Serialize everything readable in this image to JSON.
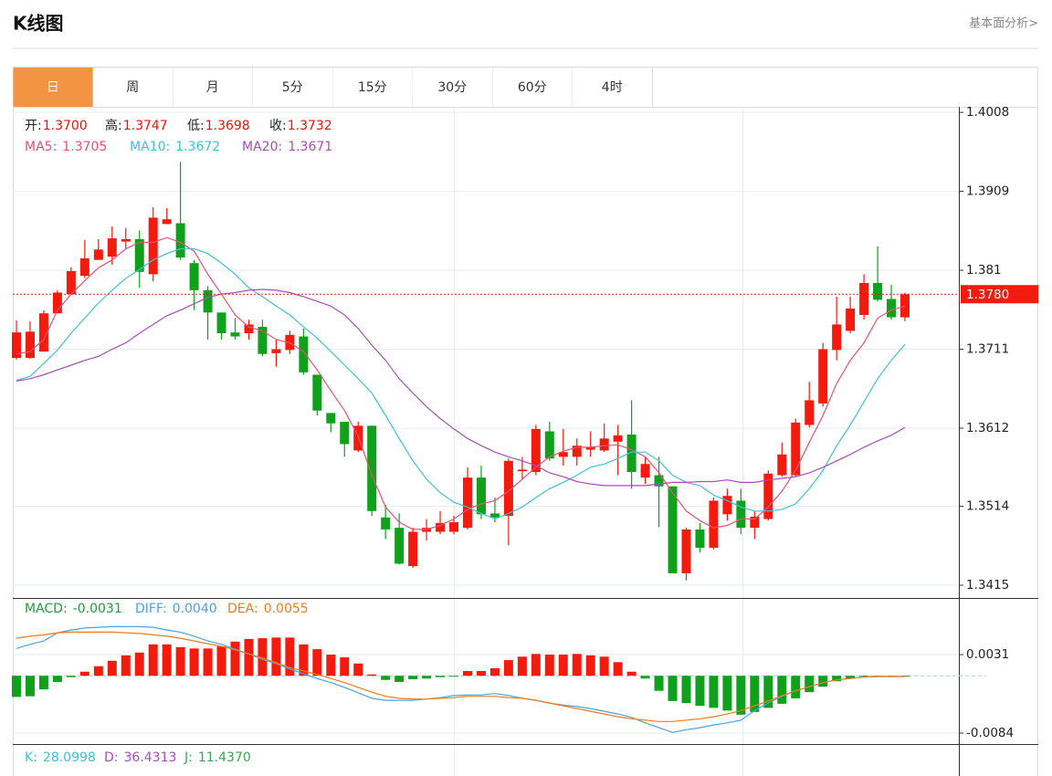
{
  "header": {
    "title": "K线图",
    "link": "基本面分析>"
  },
  "tabs": [
    "日",
    "周",
    "月",
    "5分",
    "15分",
    "30分",
    "60分",
    "4时"
  ],
  "active_tab": 0,
  "chart_data": [
    {
      "type": "candlestick",
      "info": [
        {
          "label": "开:",
          "value": "1.3700"
        },
        {
          "label": "高:",
          "value": "1.3747"
        },
        {
          "label": "低:",
          "value": "1.3698"
        },
        {
          "label": "收:",
          "value": "1.3732"
        }
      ],
      "info_label_color": "#222222",
      "info_value_color": "#e8150c",
      "legend": [
        {
          "label": "MA5:",
          "value": "1.3705",
          "color": "#e8507a"
        },
        {
          "label": "MA10:",
          "value": "1.3672",
          "color": "#3cc3d3"
        },
        {
          "label": "MA20:",
          "value": "1.3671",
          "color": "#a84db8"
        }
      ],
      "up_color": "#f21b0d",
      "down_color": "#0fa01c",
      "open": [
        1.37,
        1.37,
        1.3708,
        1.3756,
        1.378,
        1.3803,
        1.3823,
        1.3827,
        1.3846,
        1.3849,
        1.3805,
        1.3868,
        1.3869,
        1.3819,
        1.3785,
        1.3757,
        1.3732,
        1.3731,
        1.3739,
        1.3706,
        1.371,
        1.3727,
        1.3679,
        1.3631,
        1.362,
        1.3584,
        1.3615,
        1.35,
        1.3487,
        1.3439,
        1.3482,
        1.3482,
        1.3482,
        1.3487,
        1.355,
        1.3505,
        1.3502,
        1.3558,
        1.3557,
        1.3608,
        1.3576,
        1.3576,
        1.3585,
        1.3584,
        1.3595,
        1.3604,
        1.355,
        1.3553,
        1.3539,
        1.343,
        1.3485,
        1.3462,
        1.3504,
        1.3521,
        1.3487,
        1.3498,
        1.3553,
        1.3553,
        1.3616,
        1.3643,
        1.371,
        1.3734,
        1.3754,
        1.3794,
        1.3774,
        1.3751
      ],
      "high": [
        1.3747,
        1.3746,
        1.376,
        1.3785,
        1.3814,
        1.3848,
        1.3849,
        1.3865,
        1.3863,
        1.386,
        1.3889,
        1.3888,
        1.3946,
        1.3823,
        1.379,
        1.3757,
        1.375,
        1.3748,
        1.3748,
        1.3723,
        1.3734,
        1.3737,
        1.3679,
        1.3631,
        1.362,
        1.362,
        1.3615,
        1.3516,
        1.3505,
        1.3487,
        1.3498,
        1.3508,
        1.3502,
        1.3563,
        1.3565,
        1.3525,
        1.3574,
        1.3576,
        1.3616,
        1.362,
        1.3611,
        1.3599,
        1.3608,
        1.3618,
        1.3616,
        1.3647,
        1.3576,
        1.3576,
        1.3539,
        1.3487,
        1.3493,
        1.3525,
        1.3536,
        1.3536,
        1.3508,
        1.3559,
        1.3594,
        1.3624,
        1.367,
        1.3719,
        1.3777,
        1.3777,
        1.3805,
        1.384,
        1.3792,
        1.3782
      ],
      "low": [
        1.3698,
        1.3699,
        1.3708,
        1.3756,
        1.378,
        1.38,
        1.3823,
        1.3817,
        1.3837,
        1.3788,
        1.3796,
        1.3868,
        1.3823,
        1.376,
        1.3723,
        1.3723,
        1.3723,
        1.3723,
        1.3702,
        1.3689,
        1.3705,
        1.3679,
        1.3628,
        1.3607,
        1.3576,
        1.3582,
        1.3502,
        1.3473,
        1.3441,
        1.3437,
        1.3471,
        1.3479,
        1.3479,
        1.3485,
        1.3498,
        1.3494,
        1.3465,
        1.3548,
        1.3553,
        1.3571,
        1.3565,
        1.3565,
        1.3576,
        1.3582,
        1.3553,
        1.3536,
        1.3542,
        1.3488,
        1.343,
        1.3421,
        1.3456,
        1.346,
        1.3496,
        1.3479,
        1.3473,
        1.3496,
        1.3551,
        1.3551,
        1.3613,
        1.3639,
        1.3697,
        1.3731,
        1.3748,
        1.3771,
        1.3748,
        1.3746
      ],
      "close": [
        1.3732,
        1.3733,
        1.3756,
        1.3782,
        1.3809,
        1.3825,
        1.3836,
        1.385,
        1.3849,
        1.3808,
        1.3876,
        1.3874,
        1.3826,
        1.3785,
        1.3757,
        1.3731,
        1.3727,
        1.3742,
        1.3705,
        1.3711,
        1.3729,
        1.3682,
        1.3634,
        1.3618,
        1.3592,
        1.3615,
        1.3508,
        1.3485,
        1.3442,
        1.3482,
        1.3487,
        1.3493,
        1.3494,
        1.355,
        1.3504,
        1.35,
        1.3571,
        1.356,
        1.3611,
        1.3574,
        1.3582,
        1.359,
        1.3588,
        1.3599,
        1.3603,
        1.3557,
        1.3567,
        1.3539,
        1.343,
        1.3485,
        1.3462,
        1.3521,
        1.3527,
        1.3487,
        1.3501,
        1.3555,
        1.3579,
        1.3619,
        1.3647,
        1.3711,
        1.3742,
        1.3762,
        1.3794,
        1.3773,
        1.3751,
        1.378
      ],
      "series": [
        {
          "color": "#e8507a",
          "values": [
            1.3705,
            1.3708,
            1.3723,
            1.376,
            1.378,
            1.3797,
            1.3813,
            1.3823,
            1.3837,
            1.3845,
            1.3845,
            1.3851,
            1.3845,
            1.3834,
            1.3805,
            1.378,
            1.3754,
            1.3739,
            1.3734,
            1.3723,
            1.3719,
            1.3708,
            1.3685,
            1.3659,
            1.3634,
            1.3602,
            1.3553,
            1.3513,
            1.3494,
            1.3485,
            1.3485,
            1.349,
            1.3498,
            1.351,
            1.3517,
            1.3521,
            1.3533,
            1.3548,
            1.3563,
            1.3576,
            1.3583,
            1.3588,
            1.3588,
            1.359,
            1.3591,
            1.3585,
            1.3576,
            1.3556,
            1.3531,
            1.3508,
            1.3496,
            1.3487,
            1.349,
            1.3498,
            1.3498,
            1.3513,
            1.3533,
            1.3559,
            1.3594,
            1.3628,
            1.3668,
            1.3697,
            1.3719,
            1.375,
            1.376,
            1.3765
          ]
        },
        {
          "color": "#3cc3d3",
          "values": [
            1.3672,
            1.3677,
            1.3693,
            1.371,
            1.3731,
            1.375,
            1.3769,
            1.3785,
            1.38,
            1.3811,
            1.3823,
            1.3831,
            1.3837,
            1.3837,
            1.3831,
            1.3819,
            1.3805,
            1.3788,
            1.3777,
            1.3765,
            1.3754,
            1.3739,
            1.3725,
            1.3708,
            1.3691,
            1.3674,
            1.3656,
            1.3628,
            1.3599,
            1.3571,
            1.3548,
            1.3531,
            1.3519,
            1.3513,
            1.3505,
            1.3498,
            1.3505,
            1.3513,
            1.3525,
            1.3536,
            1.3544,
            1.3553,
            1.3563,
            1.3567,
            1.3574,
            1.3582,
            1.3582,
            1.3571,
            1.3553,
            1.3544,
            1.354,
            1.3528,
            1.3521,
            1.3513,
            1.3508,
            1.3508,
            1.351,
            1.3517,
            1.3536,
            1.3559,
            1.359,
            1.3616,
            1.3645,
            1.3674,
            1.3697,
            1.3717
          ]
        },
        {
          "color": "#a84db8",
          "values": [
            1.3671,
            1.3674,
            1.3679,
            1.3685,
            1.3691,
            1.3697,
            1.3702,
            1.3711,
            1.3719,
            1.3731,
            1.3742,
            1.3753,
            1.376,
            1.3768,
            1.3776,
            1.378,
            1.3782,
            1.3785,
            1.3786,
            1.3785,
            1.3782,
            1.3777,
            1.3771,
            1.3765,
            1.3754,
            1.3737,
            1.3716,
            1.3697,
            1.3674,
            1.3656,
            1.3639,
            1.3624,
            1.3611,
            1.3599,
            1.359,
            1.3582,
            1.3576,
            1.3571,
            1.3565,
            1.3556,
            1.3551,
            1.3545,
            1.3542,
            1.354,
            1.354,
            1.354,
            1.354,
            1.3542,
            1.3544,
            1.3544,
            1.3545,
            1.3545,
            1.3547,
            1.3544,
            1.3544,
            1.3547,
            1.3549,
            1.3551,
            1.3556,
            1.3563,
            1.3571,
            1.3579,
            1.3588,
            1.3596,
            1.3603,
            1.3613
          ]
        }
      ],
      "last_price": {
        "value": 1.378,
        "label": "1.3780"
      },
      "last_price_color": "#f21b0d",
      "ylim": [
        1.3399,
        1.4015
      ],
      "yticks": [
        1.4008,
        1.3909,
        1.381,
        1.3711,
        1.3612,
        1.3514,
        1.3415
      ],
      "grid": true
    },
    {
      "type": "macd",
      "legend": [
        {
          "label": "MACD:",
          "value": "-0.0031",
          "color": "#1f9e3a"
        },
        {
          "label": "DIFF:",
          "value": "0.0040",
          "color": "#4aa3e0"
        },
        {
          "label": "DEA:",
          "value": "0.0055",
          "color": "#f07c1c"
        }
      ],
      "up_color": "#f21b0d",
      "down_color": "#0fa01c",
      "values": [
        -0.0031,
        -0.003,
        -0.002,
        -0.0009,
        -0.0002,
        0.0006,
        0.0014,
        0.0022,
        0.003,
        0.0034,
        0.0046,
        0.0046,
        0.0042,
        0.004,
        0.004,
        0.0043,
        0.005,
        0.0054,
        0.0055,
        0.0056,
        0.0056,
        0.0046,
        0.0039,
        0.0031,
        0.0027,
        0.0018,
        0.0002,
        -0.0006,
        -0.0009,
        -0.0005,
        -0.0004,
        -0.0002,
        -0.0001,
        0.0007,
        0.0007,
        0.0011,
        0.0023,
        0.0028,
        0.0032,
        0.0031,
        0.0031,
        0.0032,
        0.003,
        0.0028,
        0.002,
        0.0006,
        -0.0004,
        -0.0022,
        -0.0037,
        -0.004,
        -0.0044,
        -0.0047,
        -0.0051,
        -0.0057,
        -0.0053,
        -0.0047,
        -0.0041,
        -0.0033,
        -0.0024,
        -0.0016,
        -0.0008,
        -0.0004,
        -0.0001,
        -0.0001,
        -0.0001,
        -0.0001
      ],
      "series": [
        {
          "color": "#4aa3e0",
          "values": [
            0.004,
            0.0046,
            0.0051,
            0.0063,
            0.0067,
            0.007,
            0.0071,
            0.0072,
            0.0072,
            0.0072,
            0.0071,
            0.0067,
            0.0064,
            0.0058,
            0.0051,
            0.0046,
            0.0039,
            0.0032,
            0.0024,
            0.0018,
            0.001,
            0.0003,
            -0.0004,
            -0.001,
            -0.0017,
            -0.0025,
            -0.0033,
            -0.0036,
            -0.0036,
            -0.0036,
            -0.0034,
            -0.0032,
            -0.0029,
            -0.0028,
            -0.0028,
            -0.0026,
            -0.0029,
            -0.0033,
            -0.0036,
            -0.004,
            -0.0043,
            -0.0045,
            -0.0048,
            -0.0052,
            -0.0056,
            -0.0061,
            -0.0069,
            -0.0076,
            -0.0083,
            -0.0079,
            -0.0076,
            -0.0072,
            -0.0069,
            -0.0065,
            -0.0051,
            -0.004,
            -0.003,
            -0.0022,
            -0.0016,
            -0.001,
            -0.0006,
            -0.0004,
            -0.0002,
            -0.0001,
            -0.0001,
            -0.0001
          ]
        },
        {
          "color": "#f07c1c",
          "values": [
            0.0055,
            0.0058,
            0.006,
            0.0063,
            0.0064,
            0.0064,
            0.0064,
            0.0064,
            0.0063,
            0.0062,
            0.006,
            0.0058,
            0.0055,
            0.0051,
            0.0047,
            0.0043,
            0.0038,
            0.0032,
            0.0026,
            0.0019,
            0.0012,
            0.0007,
            0.0002,
            -0.0004,
            -0.001,
            -0.0017,
            -0.0024,
            -0.003,
            -0.0033,
            -0.0034,
            -0.0034,
            -0.0033,
            -0.0032,
            -0.003,
            -0.003,
            -0.003,
            -0.0032,
            -0.0033,
            -0.0036,
            -0.004,
            -0.0044,
            -0.0048,
            -0.0052,
            -0.0056,
            -0.006,
            -0.0063,
            -0.0065,
            -0.0067,
            -0.0067,
            -0.0065,
            -0.0063,
            -0.006,
            -0.0056,
            -0.0051,
            -0.0044,
            -0.0037,
            -0.0029,
            -0.0022,
            -0.0016,
            -0.001,
            -0.0006,
            -0.0004,
            -0.0002,
            -0.0001,
            -0.0001,
            -0.0001
          ]
        }
      ],
      "ylim": [
        -0.01,
        0.0114
      ],
      "yticks": [
        0.0031,
        -0.0084
      ],
      "grid": true
    },
    {
      "type": "kdj",
      "legend": [
        {
          "label": "K:",
          "value": "28.0998",
          "color": "#3cc3d3"
        },
        {
          "label": "D:",
          "value": "36.4313",
          "color": "#a84db8"
        },
        {
          "label": "J:",
          "value": "11.4370",
          "color": "#3aa655"
        }
      ]
    }
  ]
}
